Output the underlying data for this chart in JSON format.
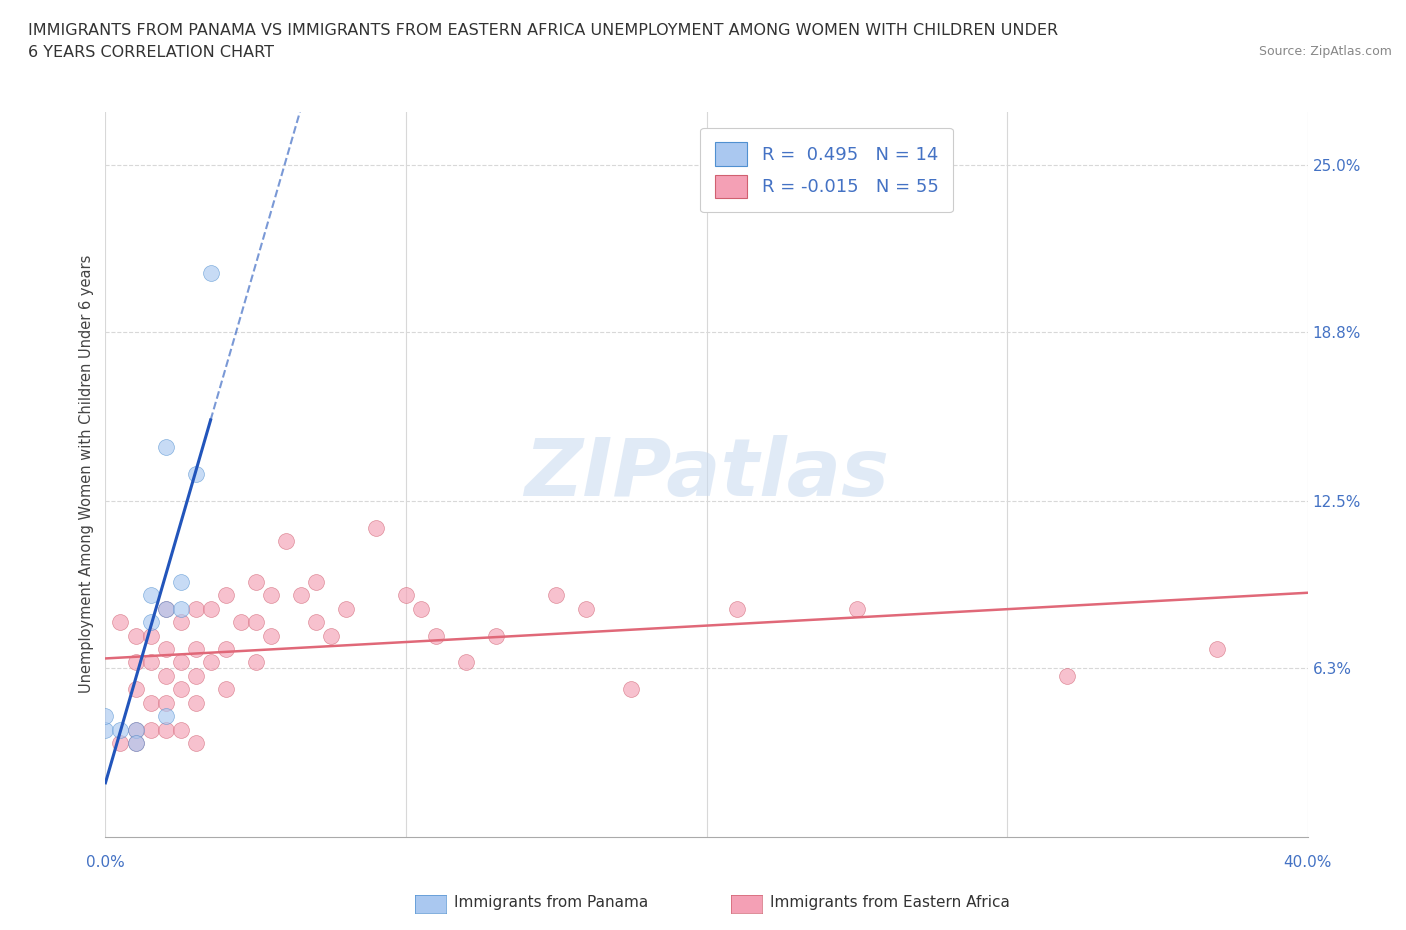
{
  "title_line1": "IMMIGRANTS FROM PANAMA VS IMMIGRANTS FROM EASTERN AFRICA UNEMPLOYMENT AMONG WOMEN WITH CHILDREN UNDER",
  "title_line2": "6 YEARS CORRELATION CHART",
  "source_text": "Source: ZipAtlas.com",
  "ylabel": "Unemployment Among Women with Children Under 6 years",
  "xlim": [
    0.0,
    0.4
  ],
  "ylim": [
    0.0,
    0.27
  ],
  "yticks_right": [
    0.063,
    0.125,
    0.188,
    0.25
  ],
  "ytick_labels_right": [
    "6.3%",
    "12.5%",
    "18.8%",
    "25.0%"
  ],
  "grid_color": "#d8d8d8",
  "watermark_text": "ZIPatlas",
  "legend_R1": "R =  0.495",
  "legend_N1": "N = 14",
  "legend_R2": "R = -0.015",
  "legend_N2": "N = 55",
  "panama_fill": "#aac8f0",
  "panama_edge": "#5090d0",
  "eastern_fill": "#f4a0b5",
  "eastern_edge": "#d06070",
  "trendline_panama_color": "#2255bb",
  "trendline_eastern_color": "#e06878",
  "panama_scatter_x": [
    0.0,
    0.005,
    0.01,
    0.01,
    0.015,
    0.015,
    0.02,
    0.02,
    0.02,
    0.025,
    0.025,
    0.03,
    0.035,
    0.0
  ],
  "panama_scatter_y": [
    0.04,
    0.04,
    0.04,
    0.035,
    0.09,
    0.08,
    0.145,
    0.085,
    0.045,
    0.095,
    0.085,
    0.135,
    0.21,
    0.045
  ],
  "eastern_scatter_x": [
    0.005,
    0.005,
    0.01,
    0.01,
    0.01,
    0.01,
    0.01,
    0.015,
    0.015,
    0.015,
    0.015,
    0.02,
    0.02,
    0.02,
    0.02,
    0.02,
    0.025,
    0.025,
    0.025,
    0.025,
    0.03,
    0.03,
    0.03,
    0.03,
    0.03,
    0.035,
    0.035,
    0.04,
    0.04,
    0.04,
    0.045,
    0.05,
    0.05,
    0.05,
    0.055,
    0.055,
    0.06,
    0.065,
    0.07,
    0.07,
    0.075,
    0.08,
    0.09,
    0.1,
    0.105,
    0.11,
    0.12,
    0.13,
    0.15,
    0.16,
    0.175,
    0.21,
    0.25,
    0.32,
    0.37
  ],
  "eastern_scatter_y": [
    0.08,
    0.035,
    0.075,
    0.065,
    0.055,
    0.04,
    0.035,
    0.075,
    0.065,
    0.05,
    0.04,
    0.085,
    0.07,
    0.06,
    0.05,
    0.04,
    0.08,
    0.065,
    0.055,
    0.04,
    0.085,
    0.07,
    0.06,
    0.05,
    0.035,
    0.085,
    0.065,
    0.09,
    0.07,
    0.055,
    0.08,
    0.095,
    0.08,
    0.065,
    0.09,
    0.075,
    0.11,
    0.09,
    0.095,
    0.08,
    0.075,
    0.085,
    0.115,
    0.09,
    0.085,
    0.075,
    0.065,
    0.075,
    0.09,
    0.085,
    0.055,
    0.085,
    0.085,
    0.06,
    0.07
  ],
  "marker_size": 130,
  "marker_alpha": 0.65,
  "background_color": "#ffffff"
}
